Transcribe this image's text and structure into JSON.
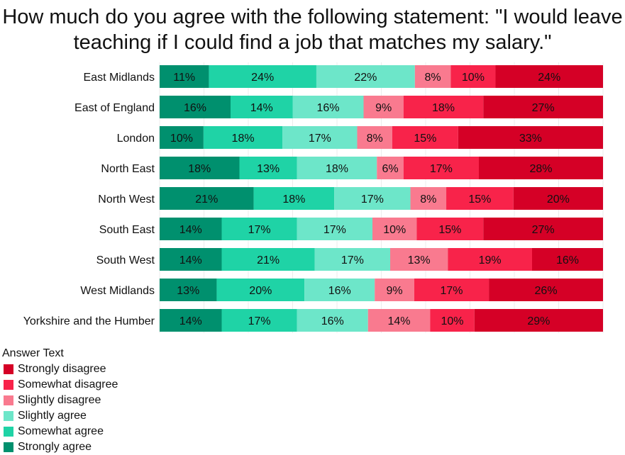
{
  "chart_data": {
    "type": "bar",
    "orientation": "horizontal",
    "stacked": true,
    "title": "How much do you agree with the following statement: \"I would leave teaching if I could find a job that matches my salary.\"",
    "categories": [
      "East Midlands",
      "East of England",
      "London",
      "North East",
      "North West",
      "South East",
      "South West",
      "West Midlands",
      "Yorkshire and the Humber"
    ],
    "series": [
      {
        "name": "Strongly agree",
        "color": "#00906e",
        "values": [
          11,
          16,
          10,
          18,
          21,
          14,
          14,
          13,
          14
        ]
      },
      {
        "name": "Somewhat agree",
        "color": "#1fd3a6",
        "values": [
          24,
          14,
          18,
          13,
          18,
          17,
          21,
          20,
          17
        ]
      },
      {
        "name": "Slightly agree",
        "color": "#6de6c9",
        "values": [
          22,
          16,
          17,
          18,
          17,
          17,
          17,
          16,
          16
        ]
      },
      {
        "name": "Slightly disagree",
        "color": "#f97a8f",
        "values": [
          8,
          9,
          8,
          6,
          8,
          10,
          13,
          9,
          14
        ]
      },
      {
        "name": "Somewhat disagree",
        "color": "#f8234a",
        "values": [
          10,
          18,
          15,
          17,
          15,
          15,
          19,
          17,
          10
        ]
      },
      {
        "name": "Strongly disagree",
        "color": "#d50026",
        "values": [
          24,
          27,
          33,
          28,
          20,
          27,
          16,
          26,
          29
        ]
      }
    ],
    "value_suffix": "%",
    "xlim": [
      0,
      100
    ],
    "grid": true,
    "legend": {
      "title": "Answer Text",
      "position": "bottom-left",
      "order": [
        "Strongly disagree",
        "Somewhat disagree",
        "Slightly disagree",
        "Slightly agree",
        "Somewhat agree",
        "Strongly agree"
      ]
    }
  }
}
